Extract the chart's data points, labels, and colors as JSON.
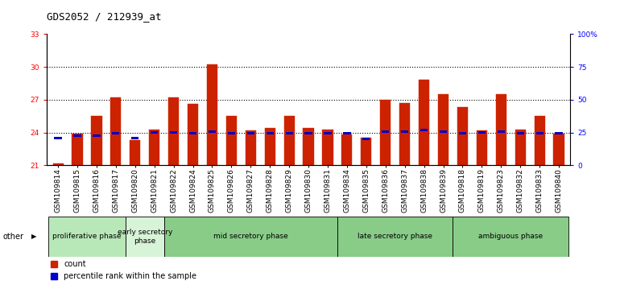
{
  "title": "GDS2052 / 212939_at",
  "samples": [
    "GSM109814",
    "GSM109815",
    "GSM109816",
    "GSM109817",
    "GSM109820",
    "GSM109821",
    "GSM109822",
    "GSM109824",
    "GSM109825",
    "GSM109826",
    "GSM109827",
    "GSM109828",
    "GSM109829",
    "GSM109830",
    "GSM109831",
    "GSM109834",
    "GSM109835",
    "GSM109836",
    "GSM109837",
    "GSM109838",
    "GSM109839",
    "GSM109818",
    "GSM109819",
    "GSM109823",
    "GSM109832",
    "GSM109833",
    "GSM109840"
  ],
  "red_values": [
    21.2,
    23.9,
    25.5,
    27.2,
    23.3,
    24.3,
    27.2,
    26.6,
    30.2,
    25.5,
    24.2,
    24.4,
    25.5,
    24.4,
    24.3,
    23.8,
    23.5,
    27.0,
    26.7,
    28.8,
    27.5,
    26.3,
    24.2,
    27.5,
    24.3,
    25.5,
    23.9
  ],
  "blue_values": [
    23.5,
    23.7,
    23.7,
    23.9,
    23.5,
    24.0,
    24.0,
    23.9,
    24.1,
    23.9,
    23.9,
    23.9,
    23.9,
    23.9,
    23.9,
    23.9,
    23.4,
    24.1,
    24.1,
    24.2,
    24.1,
    23.9,
    24.0,
    24.1,
    23.9,
    23.9,
    23.9
  ],
  "baseline": 21.0,
  "ylim_left": [
    21,
    33
  ],
  "ylim_right": [
    0,
    100
  ],
  "yticks_left": [
    21,
    24,
    27,
    30,
    33
  ],
  "yticks_right": [
    0,
    25,
    50,
    75,
    100
  ],
  "ytick_labels_right": [
    "0",
    "25",
    "50",
    "75",
    "100%"
  ],
  "red_color": "#cc2200",
  "blue_color": "#0000cc",
  "bar_width": 0.55,
  "phases": [
    {
      "label": "proliferative phase",
      "start": 0,
      "end": 4,
      "color": "#b8e8b8"
    },
    {
      "label": "early secretory\nphase",
      "start": 4,
      "end": 6,
      "color": "#d8f4d8"
    },
    {
      "label": "mid secretory phase",
      "start": 6,
      "end": 15,
      "color": "#88cc88"
    },
    {
      "label": "late secretory phase",
      "start": 15,
      "end": 21,
      "color": "#88cc88"
    },
    {
      "label": "ambiguous phase",
      "start": 21,
      "end": 27,
      "color": "#88cc88"
    }
  ],
  "grid_dotted_at": [
    24,
    27,
    30
  ],
  "title_fontsize": 9,
  "tick_fontsize": 6.5,
  "phase_fontsize": 6.5,
  "legend_fontsize": 7,
  "bg_color": "#ffffff",
  "plot_bg": "#ffffff"
}
